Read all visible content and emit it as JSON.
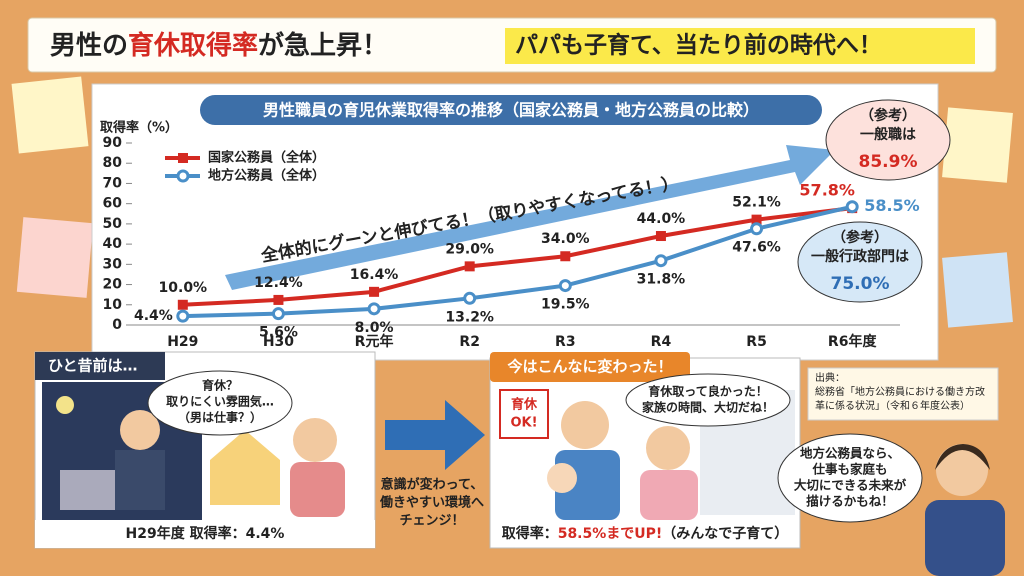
{
  "headline": {
    "parts": [
      "男性の",
      "育休取得率",
      "が急上昇！",
      "パパも子育て、当たり前の時代へ！"
    ]
  },
  "chart_data": {
    "type": "line",
    "title": "男性職員の育児休業取得率の推移（国家公務員・地方公務員の比較）",
    "y_label": "取得率（%）",
    "categories": [
      "H29",
      "H30",
      "R元年",
      "R2",
      "R3",
      "R4",
      "R5",
      "R6年度"
    ],
    "series": [
      {
        "name": "国家公務員（全体）",
        "color": "#d42a22",
        "values": [
          10.0,
          12.4,
          16.4,
          29.0,
          34.0,
          44.0,
          52.1,
          57.8
        ],
        "value_labels": [
          "10.0%",
          "12.4%",
          "16.4%",
          "29.0%",
          "34.0%",
          "44.0%",
          "52.1%",
          "57.8%"
        ]
      },
      {
        "name": "地方公務員（全体）",
        "color": "#4a8fc8",
        "values": [
          4.4,
          5.6,
          8.0,
          13.2,
          19.5,
          31.8,
          47.6,
          58.5
        ],
        "value_labels": [
          "4.4%",
          "5.6%",
          "8.0%",
          "13.2%",
          "19.5%",
          "31.8%",
          "47.6%",
          "58.5%"
        ]
      }
    ],
    "ylim": [
      0,
      90
    ],
    "yticks": [
      0,
      10,
      20,
      30,
      40,
      50,
      60,
      70,
      80,
      90
    ],
    "grid": false,
    "annotation": "全体的にグーンと伸びてる！（取りやすくなってる！）",
    "callouts": [
      {
        "lines": [
          "（参考）",
          "一般職は"
        ],
        "value": "85.9%"
      },
      {
        "lines": [
          "（参考）",
          "一般行政部門は"
        ],
        "value": "75.0%"
      }
    ]
  },
  "before": {
    "title": "ひと昔前は…",
    "bubble": [
      "育休？",
      "取りにくい雰囲気…",
      "（男は仕事？）"
    ],
    "caption": "H29年度 取得率：4.4%"
  },
  "change": [
    "意識が変わって、",
    "働きやすい環境へ",
    "チェンジ！"
  ],
  "after": {
    "title": "今はこんなに変わった！",
    "sign": [
      "育休",
      "OK!"
    ],
    "bubble": [
      "育休取って良かった！",
      "家族の時間、大切だね！"
    ],
    "caption": [
      "取得率：",
      "58.5%までUP!",
      "（みんなで子育て）"
    ]
  },
  "source": [
    "出典：",
    "総務省「地方公務員における働き方改",
    "革に係る状況」（令和６年度公表）"
  ],
  "character_bubble": [
    "地方公務員なら、",
    "仕事も家庭も",
    "大切にできる未来が",
    "描けるかもね！"
  ]
}
